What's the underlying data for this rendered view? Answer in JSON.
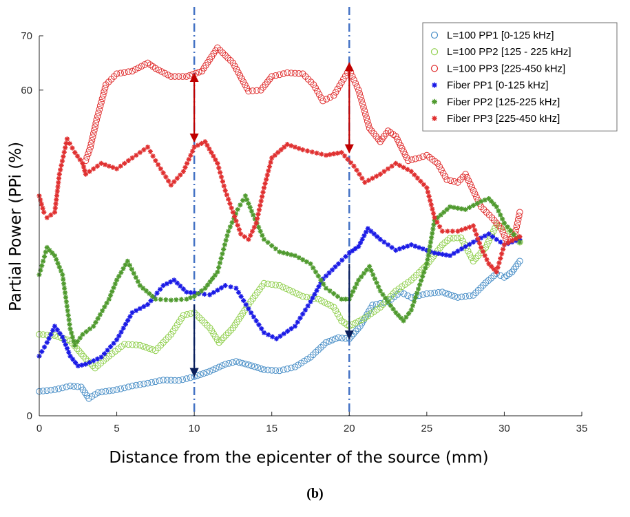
{
  "caption": "(b)",
  "chart_data": {
    "type": "scatter",
    "xlabel": "Distance from the epicenter of the source (mm)",
    "ylabel": "Partial Power (PPi (%)",
    "xlim": [
      0,
      35
    ],
    "ylim": [
      0,
      70
    ],
    "xticks": [
      "0",
      "5",
      "10",
      "15",
      "20",
      "25",
      "30",
      "35"
    ],
    "yticks": [
      "0",
      "60",
      "70"
    ],
    "ytick_values": [
      0,
      60,
      70
    ],
    "grid": false,
    "legend_position": "top-right",
    "vertical_reference_lines": [
      10,
      20
    ],
    "arrows": [
      {
        "x": 10,
        "from": 50.5,
        "to": 63.0,
        "color": "#c00000"
      },
      {
        "x": 20,
        "from": 48.5,
        "to": 65.0,
        "color": "#c00000"
      },
      {
        "x": 10,
        "from": 20.5,
        "to": 7.3,
        "color": "#0a1f5c"
      },
      {
        "x": 20,
        "from": 28.0,
        "to": 14.2,
        "color": "#0a1f5c"
      }
    ],
    "series": [
      {
        "name": "L=100 PP1 [0-125 kHz]",
        "marker": "circle",
        "color": "#4a8fc7",
        "points": [
          [
            0,
            4.5
          ],
          [
            1,
            4.8
          ],
          [
            2,
            5.5
          ],
          [
            2.7,
            5.3
          ],
          [
            3.2,
            3.2
          ],
          [
            3.8,
            4.3
          ],
          [
            5,
            4.8
          ],
          [
            6,
            5.5
          ],
          [
            7,
            6
          ],
          [
            8,
            6.6
          ],
          [
            9,
            6.5
          ],
          [
            10,
            7.2
          ],
          [
            11,
            8.2
          ],
          [
            12,
            9.5
          ],
          [
            12.7,
            10
          ],
          [
            13.5,
            9.4
          ],
          [
            14.5,
            8.5
          ],
          [
            15.5,
            8.3
          ],
          [
            16.5,
            9
          ],
          [
            17.5,
            10.8
          ],
          [
            18.5,
            13.5
          ],
          [
            19.3,
            14.4
          ],
          [
            20,
            14.2
          ],
          [
            20.7,
            16.5
          ],
          [
            21.5,
            20.4
          ],
          [
            22.5,
            21
          ],
          [
            23.3,
            22.8
          ],
          [
            24,
            21.8
          ],
          [
            25,
            22.5
          ],
          [
            26,
            22.8
          ],
          [
            27,
            21.8
          ],
          [
            28,
            22.2
          ],
          [
            28.8,
            24.5
          ],
          [
            29.5,
            26.2
          ],
          [
            30,
            25.5
          ],
          [
            30.5,
            26.5
          ],
          [
            31,
            28.5
          ]
        ]
      },
      {
        "name": "L=100 PP2 [125 - 225 kHz]",
        "marker": "circle",
        "color": "#92d050",
        "points": [
          [
            0,
            15
          ],
          [
            1,
            14.8
          ],
          [
            2,
            13.8
          ],
          [
            3,
            10.5
          ],
          [
            3.6,
            8.8
          ],
          [
            4.5,
            11
          ],
          [
            5.5,
            13.2
          ],
          [
            6.5,
            13
          ],
          [
            7.5,
            12
          ],
          [
            8.5,
            15
          ],
          [
            9.3,
            18.5
          ],
          [
            10,
            19
          ],
          [
            11,
            16.2
          ],
          [
            11.6,
            13.5
          ],
          [
            12.5,
            16.2
          ],
          [
            13.5,
            20.5
          ],
          [
            14.5,
            24.4
          ],
          [
            15.5,
            24
          ],
          [
            17,
            22
          ],
          [
            18,
            21.5
          ],
          [
            19,
            20
          ],
          [
            19.5,
            17.5
          ],
          [
            20,
            16.5
          ],
          [
            21,
            18
          ],
          [
            22,
            20
          ],
          [
            23,
            23
          ],
          [
            24,
            25
          ],
          [
            25,
            27.8
          ],
          [
            26,
            31.5
          ],
          [
            26.5,
            32.7
          ],
          [
            27.2,
            32.8
          ],
          [
            28,
            28.5
          ],
          [
            28.8,
            31
          ],
          [
            29.5,
            35.2
          ],
          [
            30.2,
            34.5
          ],
          [
            31,
            32
          ]
        ]
      },
      {
        "name": "L=100 PP3 [225-450 kHz]",
        "marker": "circle",
        "color": "#e03030",
        "points": [
          [
            3,
            47
          ],
          [
            3.3,
            49.5
          ],
          [
            3.7,
            54.5
          ],
          [
            4.3,
            61
          ],
          [
            5,
            63
          ],
          [
            6,
            63.5
          ],
          [
            7,
            65
          ],
          [
            7.5,
            64
          ],
          [
            8.5,
            62.5
          ],
          [
            9.5,
            62.5
          ],
          [
            10.5,
            63.5
          ],
          [
            11.5,
            67.8
          ],
          [
            12.5,
            65
          ],
          [
            13.5,
            59.8
          ],
          [
            14.3,
            60
          ],
          [
            15,
            62.5
          ],
          [
            16,
            63.2
          ],
          [
            17,
            63
          ],
          [
            17.7,
            61
          ],
          [
            18.3,
            58
          ],
          [
            19,
            59
          ],
          [
            20,
            63.8
          ],
          [
            20.6,
            60
          ],
          [
            21.3,
            53
          ],
          [
            22,
            50.5
          ],
          [
            22.5,
            52.5
          ],
          [
            23,
            51.5
          ],
          [
            23.8,
            47
          ],
          [
            24.5,
            47.5
          ],
          [
            25,
            48
          ],
          [
            25.7,
            46.5
          ],
          [
            26.3,
            43.5
          ],
          [
            27,
            43
          ],
          [
            27.5,
            44.5
          ],
          [
            28,
            41.5
          ],
          [
            28.5,
            38.5
          ],
          [
            29.2,
            36.5
          ],
          [
            29.8,
            34.5
          ],
          [
            30.2,
            32
          ],
          [
            30.7,
            33.5
          ],
          [
            31,
            37.5
          ]
        ]
      },
      {
        "name": "Fiber PP1 [0-125 kHz]",
        "marker": "star",
        "color": "#1a1ae6",
        "points": [
          [
            0,
            11
          ],
          [
            0.5,
            13.5
          ],
          [
            1,
            16.5
          ],
          [
            1.5,
            14.5
          ],
          [
            2,
            11
          ],
          [
            2.5,
            9.2
          ],
          [
            3,
            9.5
          ],
          [
            4,
            10.8
          ],
          [
            5,
            14
          ],
          [
            6,
            19
          ],
          [
            7,
            20.5
          ],
          [
            8,
            24
          ],
          [
            8.7,
            25
          ],
          [
            9.5,
            22.8
          ],
          [
            10.3,
            22.5
          ],
          [
            11,
            22.3
          ],
          [
            12,
            24
          ],
          [
            12.7,
            23.5
          ],
          [
            13.5,
            19.7
          ],
          [
            14.5,
            15.3
          ],
          [
            15.3,
            14.2
          ],
          [
            16.5,
            16.5
          ],
          [
            17.5,
            21
          ],
          [
            18.3,
            25.2
          ],
          [
            19.3,
            28
          ],
          [
            20,
            30
          ],
          [
            20.6,
            31.2
          ],
          [
            21.2,
            34.5
          ],
          [
            22,
            32.5
          ],
          [
            23,
            30.5
          ],
          [
            24,
            31.5
          ],
          [
            25,
            30.5
          ],
          [
            25.5,
            30
          ],
          [
            26.5,
            29.5
          ],
          [
            28,
            32
          ],
          [
            29,
            33.5
          ],
          [
            30,
            31.5
          ],
          [
            31,
            32.5
          ]
        ]
      },
      {
        "name": "Fiber PP2 [125-225 kHz]",
        "marker": "star",
        "color": "#4f9a2e",
        "points": [
          [
            0,
            26
          ],
          [
            0.5,
            31
          ],
          [
            1,
            29.5
          ],
          [
            1.5,
            26
          ],
          [
            2,
            16
          ],
          [
            2.3,
            13
          ],
          [
            2.8,
            15
          ],
          [
            3.5,
            16.5
          ],
          [
            4.5,
            21.5
          ],
          [
            5,
            25
          ],
          [
            5.7,
            28.5
          ],
          [
            6.5,
            24
          ],
          [
            7.5,
            21.5
          ],
          [
            8.5,
            21.3
          ],
          [
            9.5,
            21.5
          ],
          [
            10,
            22
          ],
          [
            10.7,
            23.5
          ],
          [
            11.5,
            26.5
          ],
          [
            12.2,
            34
          ],
          [
            12.8,
            38
          ],
          [
            13.3,
            40.5
          ],
          [
            13.8,
            37
          ],
          [
            14.5,
            32.5
          ],
          [
            15.5,
            30.2
          ],
          [
            16.5,
            29.5
          ],
          [
            17.5,
            28
          ],
          [
            18.5,
            23.5
          ],
          [
            19.5,
            21.5
          ],
          [
            20,
            21.5
          ],
          [
            20.6,
            25
          ],
          [
            21.3,
            27.5
          ],
          [
            22,
            23
          ],
          [
            23,
            19
          ],
          [
            23.5,
            17.5
          ],
          [
            24,
            19.5
          ],
          [
            25,
            28
          ],
          [
            25.5,
            36
          ],
          [
            26.5,
            38.5
          ],
          [
            27.5,
            38
          ],
          [
            28.5,
            39.5
          ],
          [
            29,
            40
          ],
          [
            29.5,
            38.5
          ],
          [
            30,
            35.5
          ],
          [
            31,
            32
          ]
        ]
      },
      {
        "name": "Fiber PP3 [225-450 kHz]",
        "marker": "star",
        "color": "#e03030",
        "points": [
          [
            0,
            40.5
          ],
          [
            0.3,
            37.5
          ],
          [
            0.5,
            36.5
          ],
          [
            1,
            37.5
          ],
          [
            1.3,
            44.5
          ],
          [
            1.8,
            51
          ],
          [
            2.3,
            48.5
          ],
          [
            2.8,
            46.5
          ],
          [
            3,
            44.5
          ],
          [
            3.5,
            45.5
          ],
          [
            4,
            46.5
          ],
          [
            5,
            45.5
          ],
          [
            6,
            47.5
          ],
          [
            7,
            49.5
          ],
          [
            7.5,
            47
          ],
          [
            8.5,
            42.5
          ],
          [
            9.3,
            45
          ],
          [
            10,
            49.5
          ],
          [
            10.7,
            50.5
          ],
          [
            11.5,
            46.5
          ],
          [
            12,
            41.5
          ],
          [
            12.5,
            37.5
          ],
          [
            13,
            33.5
          ],
          [
            13.5,
            32.5
          ],
          [
            14,
            35.5
          ],
          [
            14.5,
            42
          ],
          [
            15,
            47.5
          ],
          [
            16,
            50
          ],
          [
            17,
            49
          ],
          [
            18.5,
            48
          ],
          [
            19.5,
            48.5
          ],
          [
            20.3,
            46
          ],
          [
            21,
            43
          ],
          [
            22,
            44.5
          ],
          [
            23,
            46.5
          ],
          [
            24,
            45
          ],
          [
            25,
            42
          ],
          [
            25.5,
            36.5
          ],
          [
            26,
            34
          ],
          [
            27,
            34
          ],
          [
            28,
            35
          ],
          [
            28.5,
            31
          ],
          [
            29,
            28
          ],
          [
            29.5,
            26.5
          ],
          [
            30,
            31.5
          ],
          [
            31,
            33
          ]
        ]
      }
    ]
  }
}
